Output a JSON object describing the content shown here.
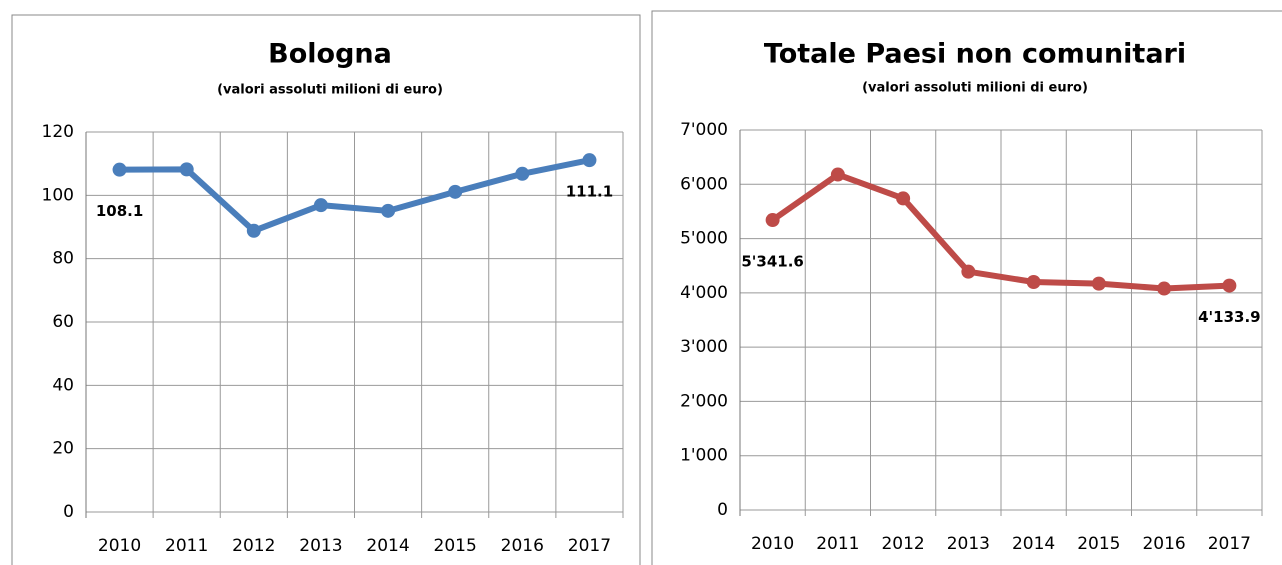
{
  "chart_data": [
    {
      "type": "line",
      "title": "Bologna",
      "subtitle": "(valori assoluti milioni di euro)",
      "categories": [
        "2010",
        "2011",
        "2012",
        "2013",
        "2014",
        "2015",
        "2016",
        "2017"
      ],
      "series": [
        {
          "name": "Bologna",
          "color": "#4a7ebb",
          "values": [
            108.1,
            108.2,
            88.8,
            96.9,
            95.1,
            101.1,
            106.8,
            111.1
          ],
          "value_labels": [
            "108.1",
            null,
            null,
            null,
            null,
            null,
            null,
            "111.1"
          ]
        }
      ],
      "ylim": [
        0,
        120
      ],
      "yticks": [
        0,
        20,
        40,
        60,
        80,
        100,
        120
      ],
      "grid": true
    },
    {
      "type": "line",
      "title": "Totale Paesi non comunitari",
      "subtitle": "(valori assoluti milioni di euro)",
      "categories": [
        "2010",
        "2011",
        "2012",
        "2013",
        "2014",
        "2015",
        "2016",
        "2017"
      ],
      "series": [
        {
          "name": "Totale Paesi non comunitari",
          "color": "#be4b48",
          "values": [
            5341.6,
            6180,
            5740,
            4390,
            4200,
            4170,
            4080,
            4133.9
          ],
          "value_labels": [
            "5'341.6",
            null,
            null,
            null,
            null,
            null,
            null,
            "4'133.9"
          ]
        }
      ],
      "ylim": [
        0,
        7000
      ],
      "yticks": [
        0,
        {
          "value": 1000,
          "label": "1'000"
        },
        {
          "value": 2000,
          "label": "2'000"
        },
        {
          "value": 3000,
          "label": "3'000"
        },
        {
          "value": 4000,
          "label": "4'000"
        },
        {
          "value": 5000,
          "label": "5'000"
        },
        {
          "value": 6000,
          "label": "6'000"
        },
        {
          "value": 7000,
          "label": "7'000"
        }
      ],
      "grid": true
    }
  ]
}
